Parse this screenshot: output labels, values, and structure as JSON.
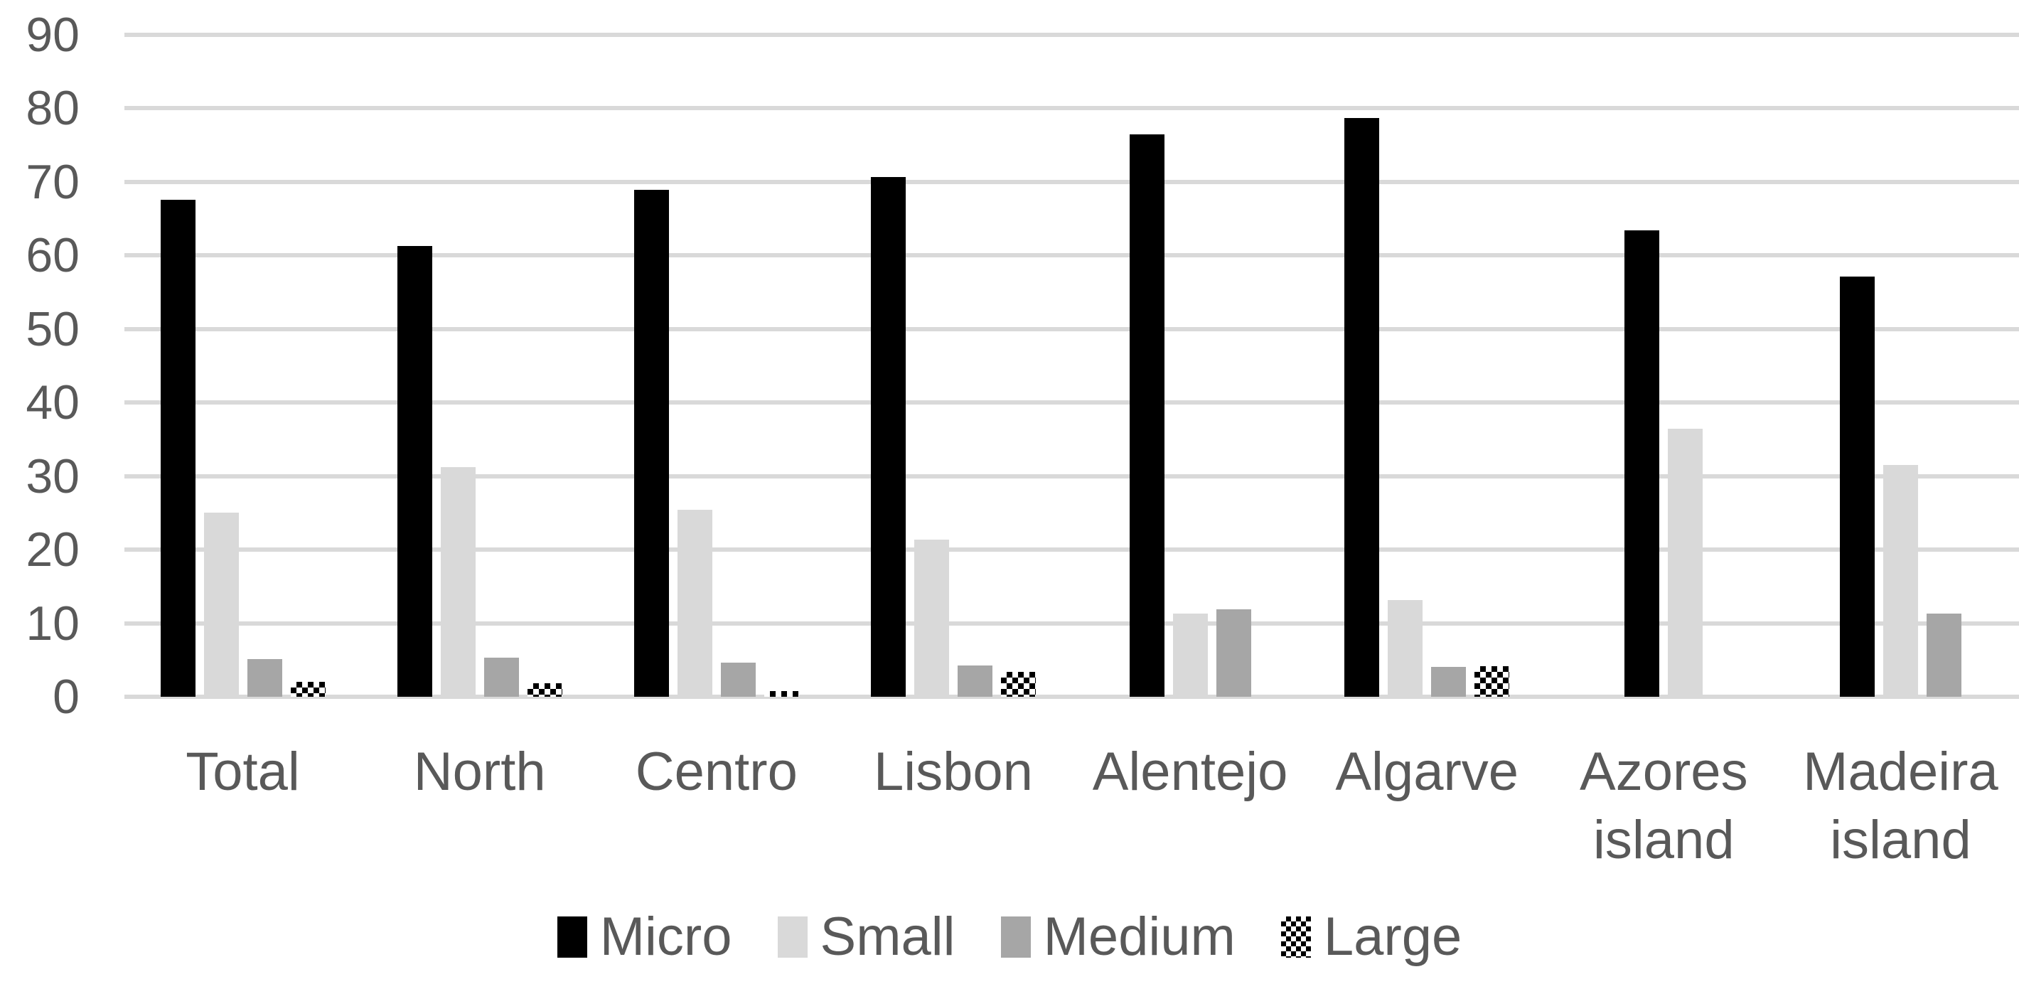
{
  "chart_data": {
    "type": "bar",
    "title": "",
    "xlabel": "",
    "ylabel": "",
    "categories": [
      "Total",
      "North",
      "Centro",
      "Lisbon",
      "Alentejo",
      "Algarve",
      "Azores island",
      "Madeira island"
    ],
    "categories_display": [
      [
        "Total"
      ],
      [
        "North"
      ],
      [
        "Centro"
      ],
      [
        "Lisbon"
      ],
      [
        "Alentejo"
      ],
      [
        "Algarve"
      ],
      [
        "Azores",
        "island"
      ],
      [
        "Madeira",
        "island"
      ]
    ],
    "series": [
      {
        "name": "Micro",
        "color": "#000000",
        "pattern": "solid",
        "values": [
          67.6,
          61.3,
          68.9,
          70.7,
          76.5,
          78.7,
          63.4,
          57.1
        ]
      },
      {
        "name": "Small",
        "color": "#d9d9d9",
        "pattern": "solid",
        "values": [
          25.0,
          31.2,
          25.4,
          21.4,
          11.3,
          13.1,
          36.4,
          31.5
        ]
      },
      {
        "name": "Medium",
        "color": "#a6a6a6",
        "pattern": "solid",
        "values": [
          5.1,
          5.3,
          4.6,
          4.3,
          11.9,
          4.1,
          0,
          11.3
        ]
      },
      {
        "name": "Large",
        "color": "#000000",
        "pattern": "checker",
        "values": [
          2.0,
          1.8,
          0.8,
          3.4,
          0,
          4.2,
          0,
          0
        ]
      }
    ],
    "ylim": [
      0,
      90
    ],
    "ytick_interval": 10,
    "yticks": [
      "0",
      "10",
      "20",
      "30",
      "40",
      "50",
      "60",
      "70",
      "80",
      "90"
    ],
    "grid": true,
    "legend_position": "bottom",
    "legend_labels": [
      "Micro",
      "Small",
      "Medium",
      "Large"
    ]
  },
  "style": {
    "text_color": "#595959",
    "gridline_color": "#d9d9d9",
    "background": "#ffffff"
  }
}
